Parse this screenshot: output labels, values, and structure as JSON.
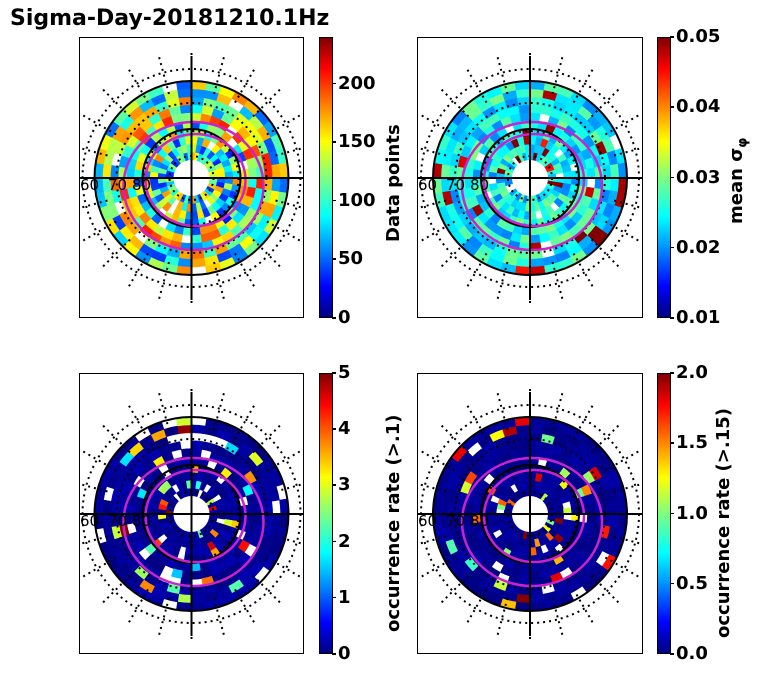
{
  "title": "Sigma-Day-20181210.1Hz",
  "colormap": "jet",
  "chart_data": [
    {
      "type": "heatmap",
      "projection": "polar",
      "lat_labels": [
        "60",
        "70",
        "80"
      ],
      "colorbar": {
        "label": "Data points",
        "range": [
          0,
          240
        ],
        "ticks": [
          "0",
          "50",
          "100",
          "150",
          "200"
        ],
        "tick_values": [
          0,
          50,
          100,
          150,
          200
        ]
      },
      "grid": true
    },
    {
      "type": "heatmap",
      "projection": "polar",
      "lat_labels": [
        "60",
        "70",
        "80"
      ],
      "colorbar": {
        "label": "mean σφ",
        "range": [
          0.01,
          0.05
        ],
        "ticks": [
          "0.01",
          "0.02",
          "0.03",
          "0.04",
          "0.05"
        ],
        "tick_values": [
          0.01,
          0.02,
          0.03,
          0.04,
          0.05
        ]
      },
      "grid": true
    },
    {
      "type": "heatmap",
      "projection": "polar",
      "lat_labels": [
        "60",
        "70",
        "80"
      ],
      "colorbar": {
        "label": "occurrence rate (>.1)",
        "range": [
          0,
          5
        ],
        "ticks": [
          "0",
          "1",
          "2",
          "3",
          "4",
          "5"
        ],
        "tick_values": [
          0,
          1,
          2,
          3,
          4,
          5
        ]
      },
      "grid": true
    },
    {
      "type": "heatmap",
      "projection": "polar",
      "lat_labels": [
        "60",
        "70",
        "80"
      ],
      "colorbar": {
        "label": "occurrence rate (>.15)",
        "range": [
          0,
          2
        ],
        "ticks": [
          "0.0",
          "0.5",
          "1.0",
          "1.5",
          "2.0"
        ],
        "tick_values": [
          0,
          0.5,
          1,
          1.5,
          2
        ]
      },
      "grid": true
    }
  ]
}
